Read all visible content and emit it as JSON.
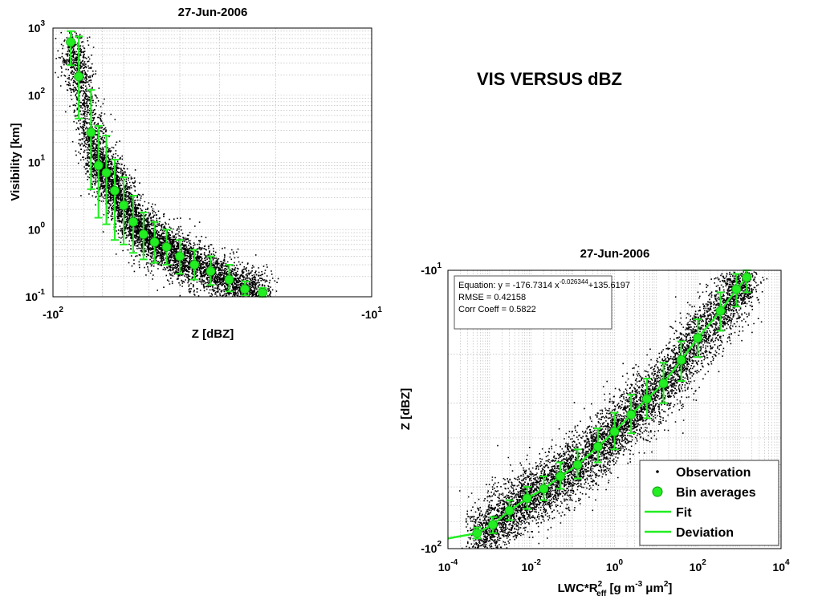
{
  "slide": {
    "heading": "VIS VERSUS dBZ"
  },
  "chart_data": [
    {
      "type": "scatter",
      "title": "27-Jun-2006",
      "xlabel": "Z [dBZ]",
      "ylabel": "Visibility [km]",
      "xscale": "log-negative",
      "yscale": "log",
      "xlim": [
        -100,
        -10
      ],
      "ylim": [
        0.1,
        1000
      ],
      "grid": true,
      "x_tick_labels": [
        {
          "value": -100,
          "base": "-10",
          "exp": "2"
        },
        {
          "value": -10,
          "base": "-10",
          "exp": "1"
        }
      ],
      "y_tick_labels": [
        {
          "value": 1000,
          "base": "10",
          "exp": "3"
        },
        {
          "value": 100,
          "base": "10",
          "exp": "2"
        },
        {
          "value": 10,
          "base": "10",
          "exp": "1"
        },
        {
          "value": 1,
          "base": "10",
          "exp": "0"
        },
        {
          "value": 0.1,
          "base": "10",
          "exp": "-1"
        }
      ],
      "series": [
        {
          "marker": "filled-circle",
          "color": "#22ee22",
          "points": [
            {
              "x": -88,
              "y": 620,
              "ylo": 280,
              "yhi": 900
            },
            {
              "x": -83,
              "y": 190,
              "ylo": 45,
              "yhi": 750
            },
            {
              "x": -76,
              "y": 28,
              "ylo": 4,
              "yhi": 120
            },
            {
              "x": -72,
              "y": 9,
              "ylo": 1.5,
              "yhi": 35
            },
            {
              "x": -68,
              "y": 7,
              "ylo": 1.2,
              "yhi": 25
            },
            {
              "x": -64,
              "y": 3.8,
              "ylo": 0.7,
              "yhi": 11
            },
            {
              "x": -60,
              "y": 2.3,
              "ylo": 0.6,
              "yhi": 6
            },
            {
              "x": -56,
              "y": 1.3,
              "ylo": 0.45,
              "yhi": 3.2
            },
            {
              "x": -52,
              "y": 0.85,
              "ylo": 0.36,
              "yhi": 1.8
            },
            {
              "x": -48,
              "y": 0.65,
              "ylo": 0.32,
              "yhi": 1.3
            },
            {
              "x": -44,
              "y": 0.55,
              "ylo": 0.3,
              "yhi": 1.0
            },
            {
              "x": -40,
              "y": 0.4,
              "ylo": 0.22,
              "yhi": 0.7
            },
            {
              "x": -36,
              "y": 0.3,
              "ylo": 0.18,
              "yhi": 0.5
            },
            {
              "x": -32,
              "y": 0.24,
              "ylo": 0.15,
              "yhi": 0.4
            },
            {
              "x": -28,
              "y": 0.18,
              "ylo": 0.12,
              "yhi": 0.3
            },
            {
              "x": -25,
              "y": 0.13,
              "ylo": 0.105,
              "yhi": 0.17
            },
            {
              "x": -22,
              "y": 0.115,
              "ylo": 0.1,
              "yhi": 0.135
            }
          ]
        }
      ]
    },
    {
      "type": "scatter",
      "title": "27-Jun-2006",
      "xlabel": "LWC*R",
      "xlabel_sub": "eff",
      "xlabel_sup": "2",
      "xlabel_units": " [g m",
      "xlabel_units_sup": "-3",
      "xlabel_units_end": " μm",
      "xlabel_units_end_sup": "2",
      "xlabel_close": "]",
      "ylabel": "Z [dBZ]",
      "xscale": "log",
      "yscale": "log-negative",
      "xlim": [
        0.0001,
        10000
      ],
      "ylim": [
        -100,
        -10
      ],
      "grid": true,
      "x_tick_labels": [
        {
          "value": 0.0001,
          "base": "10",
          "exp": "-4"
        },
        {
          "value": 0.01,
          "base": "10",
          "exp": "-2"
        },
        {
          "value": 1,
          "base": "10",
          "exp": "0"
        },
        {
          "value": 100,
          "base": "10",
          "exp": "2"
        },
        {
          "value": 10000,
          "base": "10",
          "exp": "4"
        }
      ],
      "y_tick_labels": [
        {
          "value": -10,
          "base": "-10",
          "exp": "1"
        },
        {
          "value": -100,
          "base": "-10",
          "exp": "2"
        }
      ],
      "annotation": {
        "equation_prefix": "Equation: y = -176.7314 x",
        "equation_exp": "-0.026344",
        "equation_suffix": "+135.6197",
        "rmse": "RMSE = 0.42158",
        "corr": "Corr Coeff = 0.5822"
      },
      "legend": {
        "position": "bottom-right",
        "entries": [
          "Observation",
          "Bin averages",
          "Fit",
          "Deviation"
        ]
      },
      "fit": {
        "formula": "y = -176.7314 x^-0.026344 + 135.6197",
        "color": "#22ee22"
      },
      "series": [
        {
          "marker": "filled-circle",
          "color": "#22ee22",
          "points": [
            {
              "x": 0.0005,
              "y": -88,
              "ylo": -92,
              "yhi": -84
            },
            {
              "x": 0.0012,
              "y": -82,
              "ylo": -88,
              "yhi": -77
            },
            {
              "x": 0.003,
              "y": -73,
              "ylo": -79,
              "yhi": -67
            },
            {
              "x": 0.008,
              "y": -66,
              "ylo": -72,
              "yhi": -60
            },
            {
              "x": 0.02,
              "y": -61,
              "ylo": -67,
              "yhi": -55
            },
            {
              "x": 0.05,
              "y": -55,
              "ylo": -61,
              "yhi": -49
            },
            {
              "x": 0.13,
              "y": -50,
              "ylo": -56,
              "yhi": -44
            },
            {
              "x": 0.4,
              "y": -43,
              "ylo": -49,
              "yhi": -37
            },
            {
              "x": 1,
              "y": -38,
              "ylo": -44,
              "yhi": -32.5
            },
            {
              "x": 2.5,
              "y": -33,
              "ylo": -38.5,
              "yhi": -28
            },
            {
              "x": 6,
              "y": -29,
              "ylo": -34,
              "yhi": -24.5
            },
            {
              "x": 15,
              "y": -25.5,
              "ylo": -30,
              "yhi": -21.5
            },
            {
              "x": 40,
              "y": -21,
              "ylo": -25,
              "yhi": -18
            },
            {
              "x": 100,
              "y": -17.5,
              "ylo": -20.5,
              "yhi": -15
            },
            {
              "x": 350,
              "y": -14,
              "ylo": -16.5,
              "yhi": -12
            },
            {
              "x": 850,
              "y": -11.7,
              "ylo": -13.5,
              "yhi": -10.3
            },
            {
              "x": 1500,
              "y": -10.6,
              "ylo": -12,
              "yhi": -10
            }
          ]
        }
      ]
    }
  ]
}
